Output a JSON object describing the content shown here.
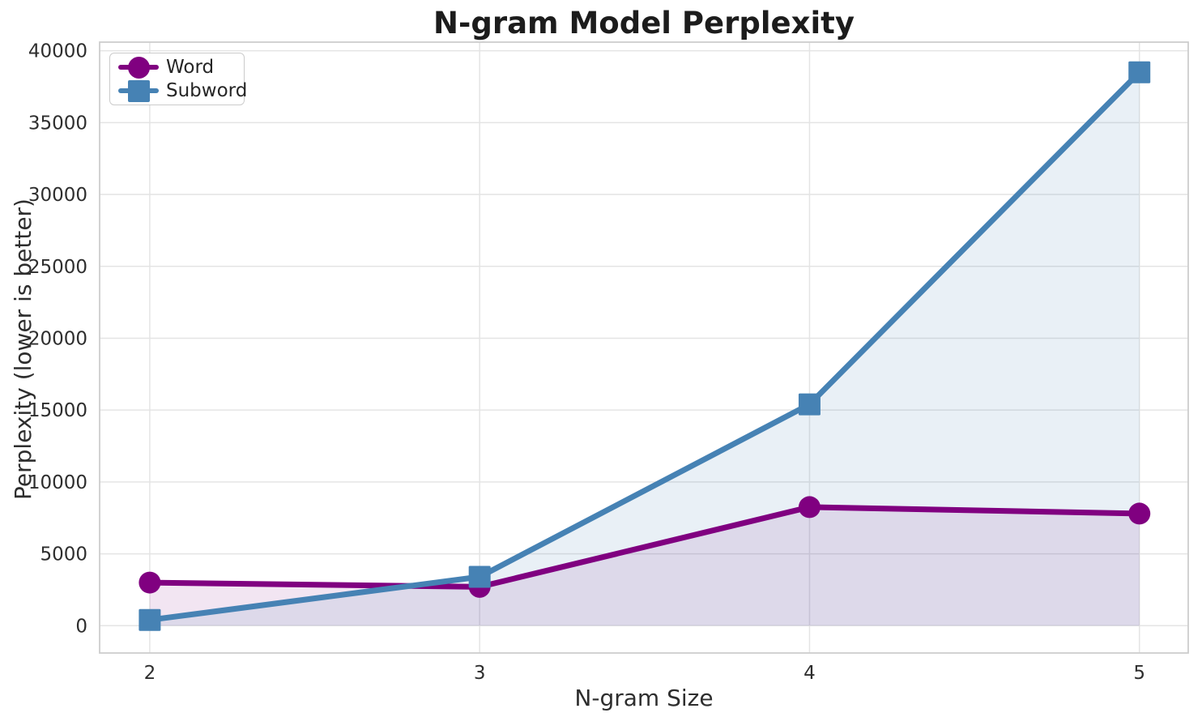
{
  "chart_data": {
    "type": "line",
    "title": "N-gram Model Perplexity",
    "xlabel": "N-gram Size",
    "ylabel": "Perplexity (lower is better)",
    "x": [
      2,
      3,
      4,
      5
    ],
    "xticks": [
      "2",
      "3",
      "4",
      "5"
    ],
    "yticks": [
      "0",
      "5000",
      "10000",
      "15000",
      "20000",
      "25000",
      "30000",
      "35000",
      "40000"
    ],
    "ytick_values": [
      0,
      5000,
      10000,
      15000,
      20000,
      25000,
      30000,
      35000,
      40000
    ],
    "xlim": [
      1.848,
      5.148
    ],
    "ylim": [
      -1900,
      40600
    ],
    "grid": true,
    "legend": {
      "position": "upper-left"
    },
    "series": [
      {
        "name": "Word",
        "marker": "circle",
        "color": "#800080",
        "fill_opacity": 0.1,
        "values": [
          3000,
          2700,
          8250,
          7800
        ]
      },
      {
        "name": "Subword",
        "marker": "square",
        "color": "#4682B4",
        "fill_opacity": 0.12,
        "values": [
          400,
          3400,
          15400,
          38500
        ]
      }
    ]
  },
  "style_colors": {
    "grid": "#e4e4e4",
    "spine": "#cdcdcd",
    "tick_text": "#2e2e2e",
    "title_text": "#1c1c1c"
  }
}
